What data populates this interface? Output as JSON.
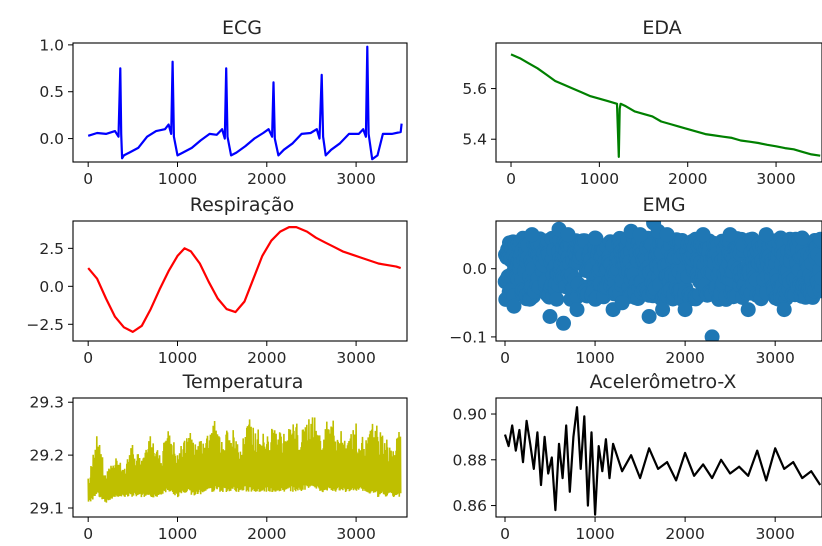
{
  "chart_data": [
    {
      "type": "line",
      "title": "ECG",
      "color": "#0000ff",
      "xlim": [
        -170,
        3570
      ],
      "ylim": [
        -0.25,
        1.02
      ],
      "xticks": [
        0,
        1000,
        2000,
        3000
      ],
      "yticks": [
        0.0,
        0.5,
        1.0
      ],
      "ytick_labels": [
        "0.0",
        "0.5",
        "1.0"
      ],
      "series": [
        {
          "x": [
            0,
            100,
            200,
            300,
            340,
            360,
            370,
            380,
            400,
            460,
            560,
            660,
            760,
            860,
            900,
            930,
            945,
            960,
            1000,
            1060,
            1160,
            1260,
            1360,
            1440,
            1500,
            1530,
            1545,
            1560,
            1600,
            1660,
            1760,
            1860,
            1960,
            2020,
            2060,
            2075,
            2090,
            2130,
            2190,
            2290,
            2390,
            2490,
            2560,
            2590,
            2615,
            2630,
            2660,
            2720,
            2820,
            2920,
            3030,
            3080,
            3110,
            3125,
            3140,
            3180,
            3240,
            3300,
            3400,
            3500,
            3510
          ],
          "y": [
            0.03,
            0.06,
            0.05,
            0.08,
            0.02,
            0.75,
            0.05,
            -0.21,
            -0.18,
            -0.15,
            -0.1,
            0.02,
            0.08,
            0.1,
            0.15,
            0.05,
            0.82,
            0.02,
            -0.18,
            -0.15,
            -0.1,
            -0.02,
            0.05,
            0.04,
            0.1,
            0.0,
            0.75,
            0.02,
            -0.18,
            -0.15,
            -0.08,
            0.0,
            0.06,
            0.1,
            0.02,
            0.6,
            0.0,
            -0.18,
            -0.12,
            -0.05,
            0.05,
            0.06,
            0.1,
            0.0,
            0.68,
            0.02,
            -0.18,
            -0.12,
            -0.05,
            0.05,
            0.05,
            0.1,
            0.02,
            0.98,
            0.05,
            -0.22,
            -0.18,
            0.05,
            0.05,
            0.07,
            0.16
          ]
        }
      ]
    },
    {
      "type": "line",
      "title": "EDA",
      "color": "#008000",
      "xlim": [
        -170,
        3520
      ],
      "ylim": [
        5.31,
        5.78
      ],
      "xticks": [
        0,
        1000,
        2000,
        3000
      ],
      "yticks": [
        5.4,
        5.6
      ],
      "ytick_labels": [
        "5.4",
        "5.6"
      ],
      "series": [
        {
          "x": [
            0,
            100,
            200,
            300,
            400,
            500,
            600,
            700,
            800,
            900,
            1000,
            1100,
            1200,
            1220,
            1230,
            1240,
            1300,
            1400,
            1500,
            1600,
            1700,
            1800,
            1900,
            2000,
            2100,
            2200,
            2300,
            2400,
            2500,
            2600,
            2700,
            2800,
            2900,
            3000,
            3100,
            3200,
            3300,
            3400,
            3500
          ],
          "y": [
            5.735,
            5.72,
            5.7,
            5.68,
            5.655,
            5.63,
            5.615,
            5.6,
            5.585,
            5.57,
            5.56,
            5.55,
            5.54,
            5.33,
            5.52,
            5.54,
            5.53,
            5.51,
            5.5,
            5.49,
            5.47,
            5.46,
            5.45,
            5.44,
            5.43,
            5.42,
            5.415,
            5.41,
            5.405,
            5.395,
            5.39,
            5.385,
            5.378,
            5.372,
            5.365,
            5.36,
            5.35,
            5.34,
            5.335
          ]
        }
      ]
    },
    {
      "type": "line",
      "title": "Respiração",
      "color": "#ff0000",
      "xlim": [
        -170,
        3570
      ],
      "ylim": [
        -3.6,
        4.3
      ],
      "xticks": [
        0,
        1000,
        2000,
        3000
      ],
      "yticks": [
        -2.5,
        0.0,
        2.5
      ],
      "ytick_labels": [
        "−2.5",
        "0.0",
        "2.5"
      ],
      "series": [
        {
          "x": [
            0,
            100,
            200,
            300,
            400,
            500,
            600,
            700,
            800,
            900,
            1000,
            1080,
            1150,
            1250,
            1350,
            1450,
            1550,
            1650,
            1750,
            1850,
            1950,
            2050,
            2150,
            2250,
            2330,
            2450,
            2550,
            2650,
            2750,
            2850,
            2950,
            3050,
            3150,
            3250,
            3350,
            3450,
            3500
          ],
          "y": [
            1.2,
            0.5,
            -0.8,
            -2.0,
            -2.7,
            -3.0,
            -2.6,
            -1.5,
            -0.2,
            1.0,
            2.0,
            2.5,
            2.3,
            1.5,
            0.3,
            -0.8,
            -1.5,
            -1.7,
            -1.0,
            0.5,
            2.0,
            3.0,
            3.6,
            3.9,
            3.9,
            3.6,
            3.2,
            2.9,
            2.6,
            2.3,
            2.1,
            1.9,
            1.7,
            1.5,
            1.4,
            1.3,
            1.2
          ]
        }
      ]
    },
    {
      "type": "scatter",
      "title": "EMG",
      "color": "#1f77b4",
      "xlim": [
        -100,
        3520
      ],
      "ylim": [
        -0.106,
        0.07
      ],
      "xticks": [
        0,
        1000,
        2000,
        3000
      ],
      "yticks": [
        -0.1,
        0.0
      ],
      "ytick_labels": [
        "−0.1",
        "0.0"
      ],
      "band": {
        "x": [
          0,
          3520
        ],
        "y": [
          -0.045,
          0.045
        ]
      },
      "outliers": {
        "x": [
          100,
          300,
          500,
          600,
          650,
          700,
          800,
          1000,
          1200,
          1300,
          1400,
          1500,
          1600,
          1650,
          1700,
          1750,
          1800,
          2000,
          2200,
          2300,
          2500,
          2700,
          2900,
          3100,
          3300
        ],
        "y": [
          -0.055,
          0.05,
          -0.07,
          0.058,
          -0.08,
          0.05,
          -0.06,
          0.045,
          -0.06,
          -0.05,
          0.055,
          0.05,
          -0.07,
          0.067,
          0.055,
          -0.06,
          0.05,
          -0.06,
          0.05,
          -0.1,
          0.05,
          -0.06,
          0.05,
          -0.06,
          0.045
        ]
      }
    },
    {
      "type": "line",
      "title": "Temperatura",
      "color": "#bfbf00",
      "xlim": [
        -170,
        3570
      ],
      "ylim": [
        29.083,
        29.308
      ],
      "xticks": [
        0,
        1000,
        2000,
        3000
      ],
      "yticks": [
        29.1,
        29.2,
        29.3
      ],
      "ytick_labels": [
        "29.1",
        "29.2",
        "29.3"
      ],
      "series": [
        {
          "x": [
            0,
            100,
            200,
            300,
            400,
            500,
            600,
            700,
            800,
            900,
            1000,
            1100,
            1200,
            1300,
            1400,
            1500,
            1600,
            1700,
            1800,
            1900,
            2000,
            2100,
            2200,
            2300,
            2400,
            2500,
            2600,
            2700,
            2800,
            2900,
            3000,
            3100,
            3200,
            3300,
            3400,
            3500
          ],
          "y": [
            29.16,
            29.24,
            29.17,
            29.2,
            29.18,
            29.23,
            29.19,
            29.24,
            29.2,
            29.25,
            29.21,
            29.24,
            29.26,
            29.22,
            29.27,
            29.24,
            29.26,
            29.22,
            29.27,
            29.25,
            29.24,
            29.26,
            29.24,
            29.27,
            29.25,
            29.29,
            29.24,
            29.28,
            29.25,
            29.24,
            29.26,
            29.23,
            29.27,
            29.24,
            29.22,
            29.25
          ],
          "y_low": [
            29.11,
            29.12,
            29.11,
            29.12,
            29.12,
            29.12,
            29.12,
            29.12,
            29.12,
            29.13,
            29.12,
            29.13,
            29.12,
            29.13,
            29.13,
            29.13,
            29.13,
            29.13,
            29.13,
            29.13,
            29.13,
            29.13,
            29.13,
            29.13,
            29.13,
            29.14,
            29.13,
            29.13,
            29.13,
            29.13,
            29.13,
            29.13,
            29.12,
            29.12,
            29.12,
            29.12
          ]
        }
      ]
    },
    {
      "type": "line",
      "title": "Acelerômetro-X",
      "color": "#000000",
      "xlim": [
        -100,
        3520
      ],
      "ylim": [
        0.855,
        0.907
      ],
      "xticks": [
        0,
        1000,
        2000,
        3000
      ],
      "yticks": [
        0.86,
        0.88,
        0.9
      ],
      "ytick_labels": [
        "0.86",
        "0.88",
        "0.90"
      ],
      "series": [
        {
          "x": [
            0,
            40,
            80,
            120,
            160,
            200,
            240,
            280,
            320,
            360,
            400,
            440,
            480,
            520,
            560,
            600,
            640,
            680,
            720,
            760,
            800,
            840,
            880,
            920,
            960,
            1000,
            1040,
            1080,
            1120,
            1160,
            1200,
            1300,
            1400,
            1500,
            1600,
            1700,
            1800,
            1900,
            2000,
            2100,
            2200,
            2300,
            2400,
            2500,
            2600,
            2700,
            2800,
            2900,
            3000,
            3100,
            3200,
            3300,
            3400,
            3500
          ],
          "y": [
            0.891,
            0.886,
            0.895,
            0.884,
            0.893,
            0.879,
            0.897,
            0.887,
            0.876,
            0.892,
            0.869,
            0.89,
            0.874,
            0.881,
            0.858,
            0.887,
            0.872,
            0.895,
            0.866,
            0.89,
            0.903,
            0.876,
            0.899,
            0.86,
            0.892,
            0.856,
            0.886,
            0.875,
            0.889,
            0.872,
            0.887,
            0.875,
            0.882,
            0.872,
            0.885,
            0.876,
            0.879,
            0.871,
            0.883,
            0.873,
            0.878,
            0.872,
            0.88,
            0.874,
            0.877,
            0.873,
            0.884,
            0.871,
            0.885,
            0.876,
            0.879,
            0.872,
            0.875,
            0.869
          ]
        }
      ]
    }
  ]
}
